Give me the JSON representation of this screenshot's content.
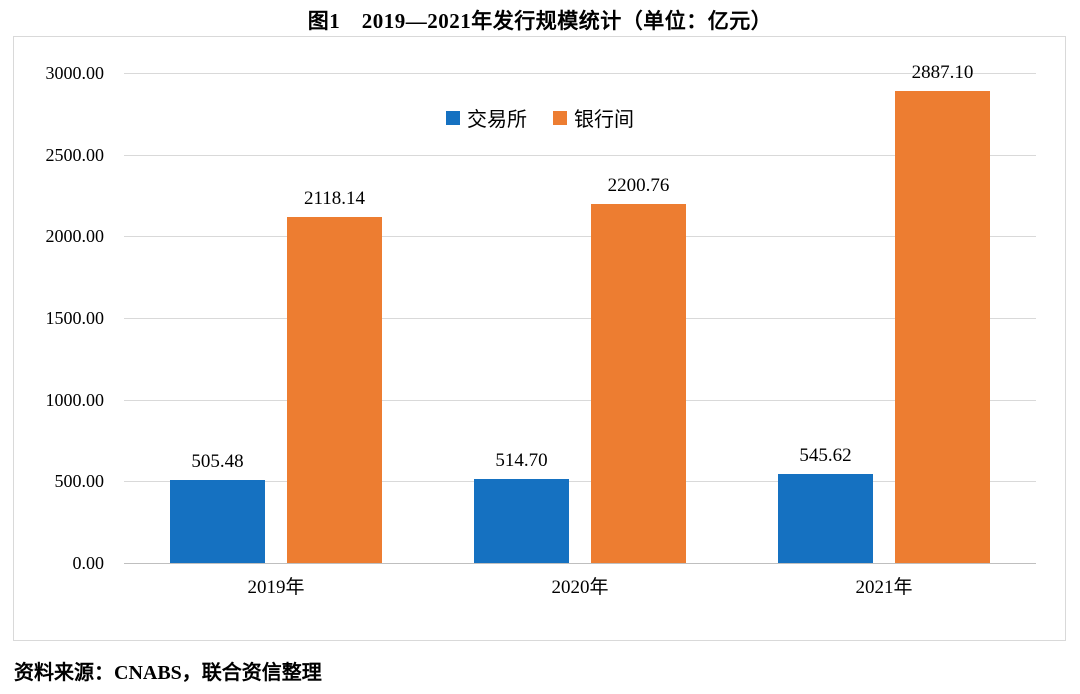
{
  "title": "图1　2019—2021年发行规模统计（单位：亿元）",
  "source": "资料来源：CNABS，联合资信整理",
  "colors": {
    "exchange_blue": "#1571C1",
    "interbank_orange": "#ED7D31",
    "gridline": "#d9d9d9",
    "axis_line": "#bfbfbf",
    "chart_border": "#d9d9d9"
  },
  "chart_data": {
    "type": "bar",
    "categories": [
      "2019年",
      "2020年",
      "2021年"
    ],
    "series": [
      {
        "name": "交易所",
        "key": "exchange",
        "color": "#1571C1",
        "values": [
          505.48,
          514.7,
          545.62
        ]
      },
      {
        "name": "银行间",
        "key": "interbank",
        "color": "#ED7D31",
        "values": [
          2118.14,
          2200.76,
          2887.1
        ]
      }
    ],
    "title": "图1　2019—2021年发行规模统计（单位：亿元）",
    "xlabel": "",
    "ylabel": "",
    "ylim": [
      0,
      3000
    ],
    "yticks": [
      "3000.00",
      "2500.00",
      "2000.00",
      "1500.00",
      "1000.00",
      "500.00",
      "0.00"
    ],
    "value_label_format": "2-decimals",
    "grid": true,
    "legend_position": "top-center"
  }
}
